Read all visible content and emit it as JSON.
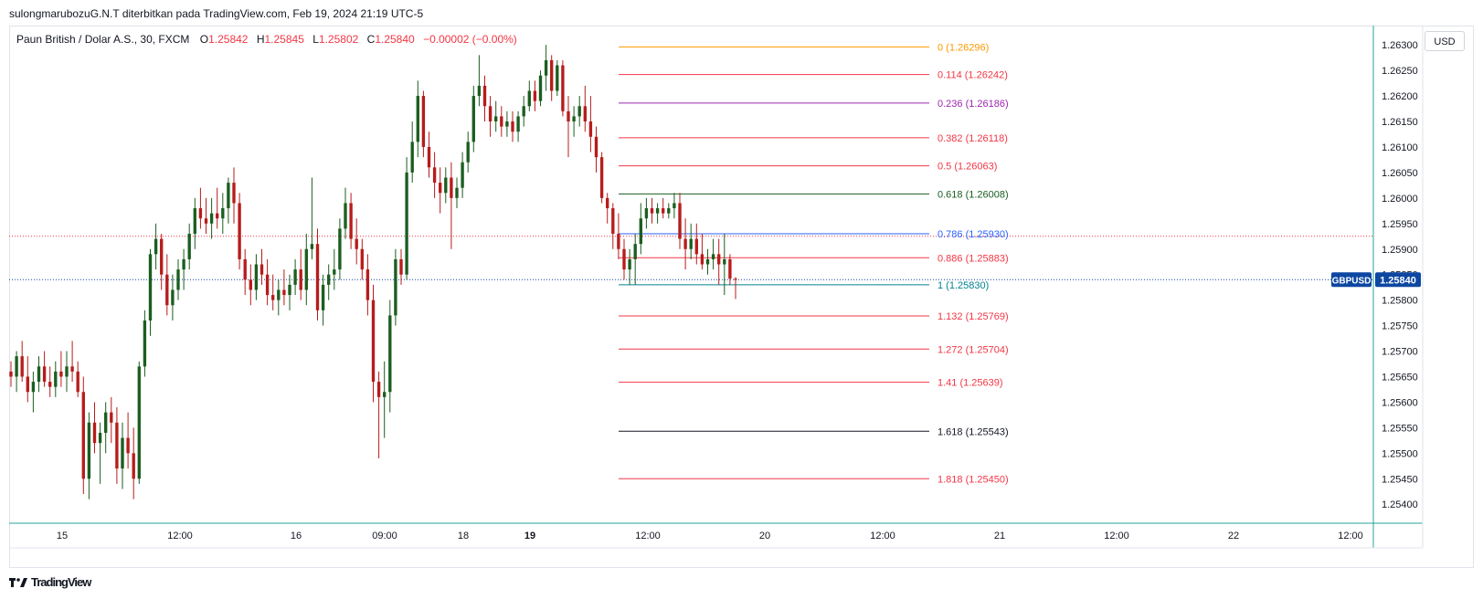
{
  "header": {
    "text": "sulongmarubozuG.N.T diterbitkan pada TradingView.com, Feb 19, 2024 21:19 UTC-5"
  },
  "legend": {
    "symbol": "Paun British / Dolar A.S., 30, FXCM",
    "open_label": "O",
    "open": "1.25842",
    "high_label": "H",
    "high": "1.25845",
    "low_label": "L",
    "low": "1.25802",
    "close_label": "C",
    "close": "1.25840",
    "change": "−0.00002 (−0.00%)"
  },
  "currency_button": "USD",
  "price_tag": {
    "symbol": "GBPUSD",
    "value": "1.25840",
    "color": "#0d47a1"
  },
  "footer": {
    "logo_icon": "tradingview-logo-icon",
    "brand": "TradingView"
  },
  "colors": {
    "up": "#1b5e20",
    "down": "#b71c1c",
    "grid": "#e0e3eb",
    "price_line": "#0d47a1"
  },
  "chart_data": {
    "type": "candlestick",
    "y_axis": {
      "range": [
        1.2537,
        1.2632
      ],
      "ticks": [
        "1.25400",
        "1.25450",
        "1.25500",
        "1.25550",
        "1.25600",
        "1.25650",
        "1.25700",
        "1.25750",
        "1.25800",
        "1.25850",
        "1.25900",
        "1.25950",
        "1.26000",
        "1.26050",
        "1.26100",
        "1.26150",
        "1.26200",
        "1.26250",
        "1.26300"
      ]
    },
    "x_axis": {
      "ticks": [
        {
          "label": "15",
          "bold": false
        },
        {
          "label": "12:00",
          "bold": false
        },
        {
          "label": "16",
          "bold": false
        },
        {
          "label": "09:00",
          "bold": false
        },
        {
          "label": "18",
          "bold": false
        },
        {
          "label": "19",
          "bold": true
        },
        {
          "label": "12:00",
          "bold": false
        },
        {
          "label": "20",
          "bold": false
        },
        {
          "label": "12:00",
          "bold": false
        },
        {
          "label": "21",
          "bold": false
        },
        {
          "label": "12:00",
          "bold": false
        },
        {
          "label": "22",
          "bold": false
        },
        {
          "label": "12:00",
          "bold": false
        }
      ]
    },
    "fibonacci": [
      {
        "level": "0",
        "price": 1.26296,
        "label": "0 (1.26296)",
        "color": "#ff9800"
      },
      {
        "level": "0.114",
        "price": 1.26242,
        "label": "0.114 (1.26242)",
        "color": "#f23645"
      },
      {
        "level": "0.236",
        "price": 1.26186,
        "label": "0.236 (1.26186)",
        "color": "#9c27b0"
      },
      {
        "level": "0.382",
        "price": 1.26118,
        "label": "0.382 (1.26118)",
        "color": "#f23645"
      },
      {
        "level": "0.5",
        "price": 1.26063,
        "label": "0.5 (1.26063)",
        "color": "#f23645"
      },
      {
        "level": "0.618",
        "price": 1.26008,
        "label": "0.618 (1.26008)",
        "color": "#1b5e20"
      },
      {
        "level": "0.786",
        "price": 1.2593,
        "label": "0.786 (1.25930)",
        "color": "#2962ff"
      },
      {
        "level": "0.886",
        "price": 1.25883,
        "label": "0.886 (1.25883)",
        "color": "#f23645"
      },
      {
        "level": "1",
        "price": 1.2583,
        "label": "1 (1.25830)",
        "color": "#00838f"
      },
      {
        "level": "1.132",
        "price": 1.25769,
        "label": "1.132 (1.25769)",
        "color": "#f23645"
      },
      {
        "level": "1.272",
        "price": 1.25704,
        "label": "1.272 (1.25704)",
        "color": "#f23645"
      },
      {
        "level": "1.41",
        "price": 1.25639,
        "label": "1.41 (1.25639)",
        "color": "#f23645"
      },
      {
        "level": "1.618",
        "price": 1.25543,
        "label": "1.618 (1.25543)",
        "color": "#131722"
      },
      {
        "level": "1.818",
        "price": 1.2545,
        "label": "1.818 (1.25450)",
        "color": "#f23645"
      }
    ],
    "horizontal_lines": [
      {
        "price": 1.25925,
        "color": "#f23645",
        "style": "dotted"
      },
      {
        "price": 1.2584,
        "color": "#0d47a1",
        "style": "dotted"
      }
    ],
    "candles": [
      {
        "o": 1.2566,
        "h": 1.2568,
        "l": 1.2563,
        "c": 1.2565
      },
      {
        "o": 1.2565,
        "h": 1.257,
        "l": 1.2562,
        "c": 1.2569
      },
      {
        "o": 1.2569,
        "h": 1.2572,
        "l": 1.2564,
        "c": 1.2565
      },
      {
        "o": 1.2565,
        "h": 1.2569,
        "l": 1.256,
        "c": 1.2562
      },
      {
        "o": 1.2562,
        "h": 1.2566,
        "l": 1.2558,
        "c": 1.2564
      },
      {
        "o": 1.2564,
        "h": 1.2569,
        "l": 1.2562,
        "c": 1.2567
      },
      {
        "o": 1.2567,
        "h": 1.257,
        "l": 1.2563,
        "c": 1.2564
      },
      {
        "o": 1.2564,
        "h": 1.2567,
        "l": 1.2561,
        "c": 1.2563
      },
      {
        "o": 1.2563,
        "h": 1.2568,
        "l": 1.2561,
        "c": 1.2566
      },
      {
        "o": 1.2566,
        "h": 1.257,
        "l": 1.2563,
        "c": 1.2565
      },
      {
        "o": 1.2565,
        "h": 1.257,
        "l": 1.2562,
        "c": 1.2567
      },
      {
        "o": 1.2567,
        "h": 1.2572,
        "l": 1.2564,
        "c": 1.2566
      },
      {
        "o": 1.2566,
        "h": 1.2568,
        "l": 1.2561,
        "c": 1.2562
      },
      {
        "o": 1.2562,
        "h": 1.2565,
        "l": 1.2542,
        "c": 1.2545
      },
      {
        "o": 1.2545,
        "h": 1.2558,
        "l": 1.2541,
        "c": 1.2556
      },
      {
        "o": 1.2556,
        "h": 1.256,
        "l": 1.255,
        "c": 1.2552
      },
      {
        "o": 1.2552,
        "h": 1.2556,
        "l": 1.2544,
        "c": 1.2554
      },
      {
        "o": 1.2554,
        "h": 1.256,
        "l": 1.255,
        "c": 1.2558
      },
      {
        "o": 1.2558,
        "h": 1.2561,
        "l": 1.2552,
        "c": 1.2556
      },
      {
        "o": 1.2556,
        "h": 1.2559,
        "l": 1.2544,
        "c": 1.2547
      },
      {
        "o": 1.2547,
        "h": 1.2556,
        "l": 1.2543,
        "c": 1.2553
      },
      {
        "o": 1.2553,
        "h": 1.2558,
        "l": 1.2547,
        "c": 1.255
      },
      {
        "o": 1.255,
        "h": 1.2555,
        "l": 1.2541,
        "c": 1.2545
      },
      {
        "o": 1.2545,
        "h": 1.2568,
        "l": 1.2544,
        "c": 1.2567
      },
      {
        "o": 1.2567,
        "h": 1.2578,
        "l": 1.2565,
        "c": 1.2576
      },
      {
        "o": 1.2576,
        "h": 1.259,
        "l": 1.2573,
        "c": 1.2589
      },
      {
        "o": 1.2589,
        "h": 1.2595,
        "l": 1.2586,
        "c": 1.2592
      },
      {
        "o": 1.2592,
        "h": 1.2593,
        "l": 1.2582,
        "c": 1.2585
      },
      {
        "o": 1.2585,
        "h": 1.2589,
        "l": 1.2577,
        "c": 1.2579
      },
      {
        "o": 1.2579,
        "h": 1.2585,
        "l": 1.2576,
        "c": 1.2582
      },
      {
        "o": 1.2582,
        "h": 1.2588,
        "l": 1.258,
        "c": 1.2586
      },
      {
        "o": 1.2586,
        "h": 1.259,
        "l": 1.2582,
        "c": 1.2588
      },
      {
        "o": 1.2588,
        "h": 1.2595,
        "l": 1.2586,
        "c": 1.2593
      },
      {
        "o": 1.2593,
        "h": 1.26,
        "l": 1.259,
        "c": 1.2598
      },
      {
        "o": 1.2598,
        "h": 1.2602,
        "l": 1.2594,
        "c": 1.2596
      },
      {
        "o": 1.2596,
        "h": 1.26,
        "l": 1.2593,
        "c": 1.2595
      },
      {
        "o": 1.2595,
        "h": 1.26,
        "l": 1.2592,
        "c": 1.2597
      },
      {
        "o": 1.2597,
        "h": 1.2602,
        "l": 1.2594,
        "c": 1.2596
      },
      {
        "o": 1.2596,
        "h": 1.2601,
        "l": 1.2593,
        "c": 1.2598
      },
      {
        "o": 1.2598,
        "h": 1.2604,
        "l": 1.2595,
        "c": 1.2603
      },
      {
        "o": 1.2603,
        "h": 1.2606,
        "l": 1.2595,
        "c": 1.2599
      },
      {
        "o": 1.2599,
        "h": 1.2601,
        "l": 1.2586,
        "c": 1.2588
      },
      {
        "o": 1.2588,
        "h": 1.259,
        "l": 1.2581,
        "c": 1.2584
      },
      {
        "o": 1.2584,
        "h": 1.2587,
        "l": 1.2579,
        "c": 1.2582
      },
      {
        "o": 1.2582,
        "h": 1.2589,
        "l": 1.258,
        "c": 1.2587
      },
      {
        "o": 1.2587,
        "h": 1.259,
        "l": 1.2583,
        "c": 1.2585
      },
      {
        "o": 1.2585,
        "h": 1.2588,
        "l": 1.2579,
        "c": 1.2581
      },
      {
        "o": 1.2581,
        "h": 1.2585,
        "l": 1.2578,
        "c": 1.258
      },
      {
        "o": 1.258,
        "h": 1.2584,
        "l": 1.2577,
        "c": 1.2582
      },
      {
        "o": 1.2582,
        "h": 1.2586,
        "l": 1.2579,
        "c": 1.2581
      },
      {
        "o": 1.2581,
        "h": 1.2585,
        "l": 1.2578,
        "c": 1.2583
      },
      {
        "o": 1.2583,
        "h": 1.2588,
        "l": 1.2581,
        "c": 1.2586
      },
      {
        "o": 1.2586,
        "h": 1.259,
        "l": 1.258,
        "c": 1.2582
      },
      {
        "o": 1.2582,
        "h": 1.2593,
        "l": 1.2579,
        "c": 1.259
      },
      {
        "o": 1.259,
        "h": 1.2604,
        "l": 1.2588,
        "c": 1.2591
      },
      {
        "o": 1.2591,
        "h": 1.2594,
        "l": 1.2576,
        "c": 1.2578
      },
      {
        "o": 1.2578,
        "h": 1.2585,
        "l": 1.2575,
        "c": 1.2583
      },
      {
        "o": 1.2583,
        "h": 1.2587,
        "l": 1.258,
        "c": 1.2585
      },
      {
        "o": 1.2585,
        "h": 1.259,
        "l": 1.2582,
        "c": 1.2586
      },
      {
        "o": 1.2586,
        "h": 1.2596,
        "l": 1.2584,
        "c": 1.2594
      },
      {
        "o": 1.2594,
        "h": 1.2602,
        "l": 1.2592,
        "c": 1.2599
      },
      {
        "o": 1.2599,
        "h": 1.2601,
        "l": 1.259,
        "c": 1.2592
      },
      {
        "o": 1.2592,
        "h": 1.2596,
        "l": 1.2587,
        "c": 1.259
      },
      {
        "o": 1.259,
        "h": 1.2592,
        "l": 1.2584,
        "c": 1.2586
      },
      {
        "o": 1.2586,
        "h": 1.2589,
        "l": 1.2577,
        "c": 1.258
      },
      {
        "o": 1.258,
        "h": 1.2583,
        "l": 1.256,
        "c": 1.2564
      },
      {
        "o": 1.2564,
        "h": 1.2566,
        "l": 1.2549,
        "c": 1.2561
      },
      {
        "o": 1.2561,
        "h": 1.2568,
        "l": 1.2553,
        "c": 1.2562
      },
      {
        "o": 1.2562,
        "h": 1.258,
        "l": 1.2558,
        "c": 1.2577
      },
      {
        "o": 1.2577,
        "h": 1.259,
        "l": 1.2575,
        "c": 1.2588
      },
      {
        "o": 1.2588,
        "h": 1.259,
        "l": 1.2583,
        "c": 1.2585
      },
      {
        "o": 1.2585,
        "h": 1.2608,
        "l": 1.2584,
        "c": 1.2605
      },
      {
        "o": 1.2605,
        "h": 1.2615,
        "l": 1.2603,
        "c": 1.2611
      },
      {
        "o": 1.2611,
        "h": 1.2623,
        "l": 1.2608,
        "c": 1.262
      },
      {
        "o": 1.262,
        "h": 1.2621,
        "l": 1.2608,
        "c": 1.261
      },
      {
        "o": 1.261,
        "h": 1.2613,
        "l": 1.2604,
        "c": 1.2606
      },
      {
        "o": 1.2606,
        "h": 1.2609,
        "l": 1.26,
        "c": 1.2603
      },
      {
        "o": 1.2603,
        "h": 1.2606,
        "l": 1.2597,
        "c": 1.2601
      },
      {
        "o": 1.2601,
        "h": 1.2606,
        "l": 1.2599,
        "c": 1.2604
      },
      {
        "o": 1.2604,
        "h": 1.2607,
        "l": 1.259,
        "c": 1.26
      },
      {
        "o": 1.26,
        "h": 1.2604,
        "l": 1.2598,
        "c": 1.2602
      },
      {
        "o": 1.2602,
        "h": 1.2609,
        "l": 1.26,
        "c": 1.2607
      },
      {
        "o": 1.2607,
        "h": 1.2613,
        "l": 1.2605,
        "c": 1.2611
      },
      {
        "o": 1.2611,
        "h": 1.2622,
        "l": 1.2609,
        "c": 1.262
      },
      {
        "o": 1.262,
        "h": 1.2628,
        "l": 1.2618,
        "c": 1.2622
      },
      {
        "o": 1.2622,
        "h": 1.2624,
        "l": 1.2615,
        "c": 1.2618
      },
      {
        "o": 1.2618,
        "h": 1.262,
        "l": 1.2612,
        "c": 1.2615
      },
      {
        "o": 1.2615,
        "h": 1.2619,
        "l": 1.2613,
        "c": 1.2616
      },
      {
        "o": 1.2616,
        "h": 1.2618,
        "l": 1.2612,
        "c": 1.2614
      },
      {
        "o": 1.2614,
        "h": 1.2617,
        "l": 1.2612,
        "c": 1.2615
      },
      {
        "o": 1.2615,
        "h": 1.2617,
        "l": 1.2611,
        "c": 1.2613
      },
      {
        "o": 1.2613,
        "h": 1.2617,
        "l": 1.2611,
        "c": 1.2616
      },
      {
        "o": 1.2616,
        "h": 1.262,
        "l": 1.2614,
        "c": 1.2618
      },
      {
        "o": 1.2618,
        "h": 1.2623,
        "l": 1.2617,
        "c": 1.2621
      },
      {
        "o": 1.2621,
        "h": 1.2623,
        "l": 1.2617,
        "c": 1.2619
      },
      {
        "o": 1.2619,
        "h": 1.2625,
        "l": 1.2618,
        "c": 1.2624
      },
      {
        "o": 1.2624,
        "h": 1.263,
        "l": 1.2621,
        "c": 1.2627
      },
      {
        "o": 1.2627,
        "h": 1.2628,
        "l": 1.2619,
        "c": 1.2621
      },
      {
        "o": 1.2621,
        "h": 1.2627,
        "l": 1.262,
        "c": 1.2626
      },
      {
        "o": 1.2626,
        "h": 1.2627,
        "l": 1.2616,
        "c": 1.2617
      },
      {
        "o": 1.2617,
        "h": 1.262,
        "l": 1.2608,
        "c": 1.2615
      },
      {
        "o": 1.2615,
        "h": 1.2618,
        "l": 1.2612,
        "c": 1.2616
      },
      {
        "o": 1.2616,
        "h": 1.262,
        "l": 1.2614,
        "c": 1.2618
      },
      {
        "o": 1.2618,
        "h": 1.2622,
        "l": 1.2613,
        "c": 1.2615
      },
      {
        "o": 1.2615,
        "h": 1.262,
        "l": 1.2609,
        "c": 1.2612
      },
      {
        "o": 1.2612,
        "h": 1.2614,
        "l": 1.2605,
        "c": 1.2608
      },
      {
        "o": 1.2608,
        "h": 1.2609,
        "l": 1.2599,
        "c": 1.26
      },
      {
        "o": 1.26,
        "h": 1.2601,
        "l": 1.2595,
        "c": 1.2598
      },
      {
        "o": 1.2598,
        "h": 1.2599,
        "l": 1.259,
        "c": 1.2593
      },
      {
        "o": 1.2593,
        "h": 1.2597,
        "l": 1.2588,
        "c": 1.259
      },
      {
        "o": 1.259,
        "h": 1.2592,
        "l": 1.2584,
        "c": 1.2586
      },
      {
        "o": 1.2586,
        "h": 1.259,
        "l": 1.2583,
        "c": 1.2588
      },
      {
        "o": 1.2588,
        "h": 1.2593,
        "l": 1.2583,
        "c": 1.2591
      },
      {
        "o": 1.2591,
        "h": 1.2599,
        "l": 1.2589,
        "c": 1.2596
      },
      {
        "o": 1.2596,
        "h": 1.26,
        "l": 1.2594,
        "c": 1.2598
      },
      {
        "o": 1.2598,
        "h": 1.26,
        "l": 1.2595,
        "c": 1.2597
      },
      {
        "o": 1.2597,
        "h": 1.2599,
        "l": 1.2595,
        "c": 1.2598
      },
      {
        "o": 1.2598,
        "h": 1.26,
        "l": 1.2596,
        "c": 1.2597
      },
      {
        "o": 1.2597,
        "h": 1.2599,
        "l": 1.2596,
        "c": 1.2598
      },
      {
        "o": 1.2598,
        "h": 1.2601,
        "l": 1.2596,
        "c": 1.2599
      },
      {
        "o": 1.2599,
        "h": 1.2601,
        "l": 1.259,
        "c": 1.2592
      },
      {
        "o": 1.2592,
        "h": 1.2596,
        "l": 1.2586,
        "c": 1.259
      },
      {
        "o": 1.259,
        "h": 1.2595,
        "l": 1.2588,
        "c": 1.2592
      },
      {
        "o": 1.2592,
        "h": 1.2595,
        "l": 1.2587,
        "c": 1.2589
      },
      {
        "o": 1.2589,
        "h": 1.2593,
        "l": 1.2586,
        "c": 1.2587
      },
      {
        "o": 1.2587,
        "h": 1.259,
        "l": 1.2585,
        "c": 1.2588
      },
      {
        "o": 1.2588,
        "h": 1.2592,
        "l": 1.2586,
        "c": 1.2589
      },
      {
        "o": 1.2589,
        "h": 1.2592,
        "l": 1.2583,
        "c": 1.2587
      },
      {
        "o": 1.2587,
        "h": 1.2593,
        "l": 1.2581,
        "c": 1.2588
      },
      {
        "o": 1.2588,
        "h": 1.2589,
        "l": 1.2583,
        "c": 1.25842
      },
      {
        "o": 1.25842,
        "h": 1.25845,
        "l": 1.25802,
        "c": 1.2584
      }
    ]
  }
}
